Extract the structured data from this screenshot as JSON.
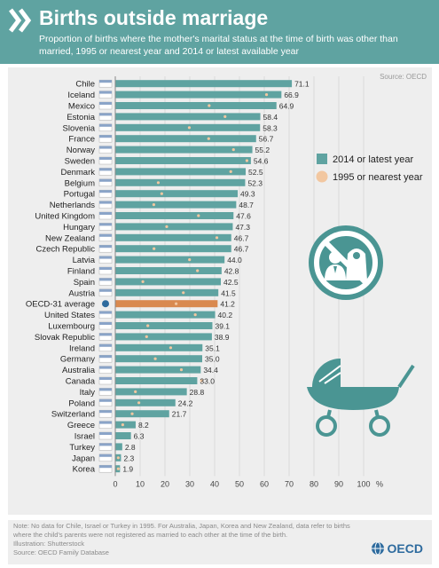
{
  "header": {
    "title": "Births outside marriage",
    "subtitle": "Proportion of births where the mother's marital status at the time of birth was other than married, 1995 or nearest year and 2014 or latest available year"
  },
  "source_top": "Source: OECD",
  "colors": {
    "header_bg": "#5fa3a1",
    "bar": "#5fa3a1",
    "bar_highlight": "#d9894f",
    "marker_1995": "#f2c7a0",
    "panel": "#eeeeee",
    "icon": "#4a9593"
  },
  "icons": [
    "chevron-double-icon",
    "no-marriage-icon",
    "pram-icon",
    "flag-icon",
    "oecd-globe-icon"
  ],
  "chart_data": {
    "type": "bar",
    "orientation": "horizontal",
    "categories": [
      "Chile",
      "Iceland",
      "Mexico",
      "Estonia",
      "Slovenia",
      "France",
      "Norway",
      "Sweden",
      "Denmark",
      "Belgium",
      "Portugal",
      "Netherlands",
      "United Kingdom",
      "Hungary",
      "New Zealand",
      "Czech Republic",
      "Latvia",
      "Finland",
      "Spain",
      "Austria",
      "OECD-31 average",
      "United States",
      "Luxembourg",
      "Slovak Republic",
      "Ireland",
      "Germany",
      "Australia",
      "Canada",
      "Italy",
      "Poland",
      "Switzerland",
      "Greece",
      "Israel",
      "Turkey",
      "Japan",
      "Korea"
    ],
    "series": [
      {
        "name": "2014 or latest year",
        "values": [
          71.1,
          66.9,
          64.9,
          58.4,
          58.3,
          56.7,
          55.2,
          54.6,
          52.5,
          52.3,
          49.3,
          48.7,
          47.6,
          47.3,
          46.7,
          46.7,
          44.0,
          42.8,
          42.5,
          41.5,
          41.2,
          40.2,
          39.1,
          38.9,
          35.1,
          35.0,
          34.4,
          33.0,
          28.8,
          24.2,
          21.7,
          8.2,
          6.3,
          2.8,
          2.3,
          1.9
        ],
        "labels": [
          "71.1",
          "66.9",
          "64.9",
          "58.4",
          "58.3",
          "56.7",
          "55.2",
          "54.6",
          "52.5",
          "52.3",
          "49.3",
          "48.7",
          "47.6",
          "47.3",
          "46.7",
          "46.7",
          "44.0",
          "42.8",
          "42.5",
          "41.5",
          "41.2",
          "40.2",
          "39.1",
          "38.9",
          "35.1",
          "35.0",
          "34.4",
          "33.0",
          "28.8",
          "24.2",
          "21.7",
          "8.2",
          "6.3",
          "2.8",
          "2.3",
          "1.9"
        ]
      },
      {
        "name": "1995 or nearest year",
        "values": [
          null,
          60.9,
          37.8,
          44.2,
          29.8,
          37.6,
          47.6,
          53.0,
          46.5,
          17.3,
          18.7,
          15.5,
          33.5,
          20.7,
          40.9,
          15.6,
          29.9,
          33.1,
          11.1,
          27.4,
          24.5,
          32.2,
          13.1,
          12.6,
          22.3,
          16.1,
          26.6,
          34.7,
          8.1,
          9.5,
          6.8,
          3.0,
          null,
          null,
          1.2,
          1.2
        ]
      }
    ],
    "legend": [
      "2014 or latest year",
      "1995 or nearest year"
    ],
    "legend_position": "right",
    "highlight": "OECD-31 average",
    "xlim": [
      0,
      100
    ],
    "xticks": [
      "0",
      "10",
      "20",
      "30",
      "40",
      "50",
      "60",
      "70",
      "80",
      "90",
      "100"
    ],
    "xlabel": "%",
    "grid": true
  },
  "note": "Note: No data for Chile, Israel or Turkey in 1995. For Australia, Japan, Korea and New Zealand, data refer to births where the child's parents were not registered as married to each other at the time of the birth.",
  "illustration": "Illustration: Shutterstock",
  "source_bottom": "Source: OECD Family Database",
  "logo_text": "OECD"
}
